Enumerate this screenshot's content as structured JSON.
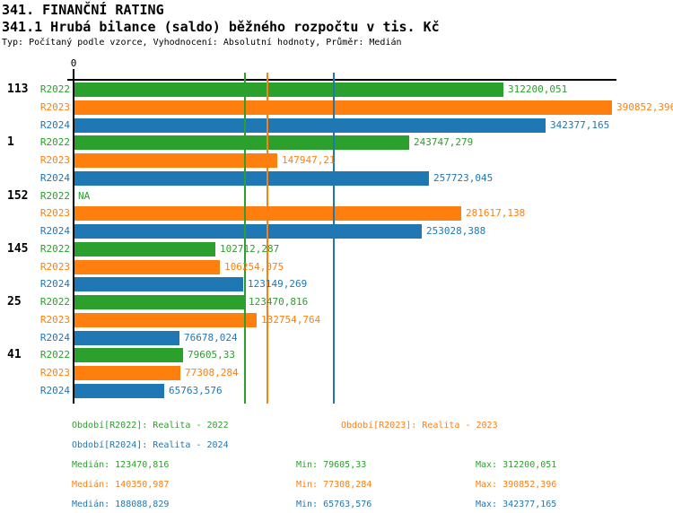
{
  "header": {
    "title": "341. FINANČNÍ RATING",
    "subtitle": "341.1 Hrubá bilance (saldo) běžného rozpočtu v tis. Kč",
    "meta": "Typ: Počítaný podle vzorce, Vyhodnocení: Absolutní hodnoty, Průměr: Medián"
  },
  "chart_data": {
    "type": "bar",
    "orientation": "horizontal",
    "title": "341.1 Hrubá bilance (saldo) běžného rozpočtu v tis. Kč",
    "unit": "tis. Kč",
    "axis": {
      "zero_label": "0",
      "min": 0,
      "max": 390852.396,
      "gridlines": false
    },
    "series": [
      {
        "id": "R2022",
        "label": "R2022",
        "color": "#2ca02c",
        "median": 123470.816,
        "min": 79605.33,
        "max": 312200.051
      },
      {
        "id": "R2023",
        "label": "R2023",
        "color": "#ff7f0e",
        "median": 140350.987,
        "min": 77308.284,
        "max": 390852.396
      },
      {
        "id": "R2024",
        "label": "R2024",
        "color": "#1f77b4",
        "median": 188088.829,
        "min": 65763.576,
        "max": 342377.165
      }
    ],
    "groups": [
      {
        "label": "113",
        "values": [
          312200.051,
          390852.396,
          342377.165
        ],
        "display": [
          "312200,051",
          "390852,396",
          "342377,165"
        ]
      },
      {
        "label": "1",
        "values": [
          243747.279,
          147947.21,
          257723.045
        ],
        "display": [
          "243747,279",
          "147947,21",
          "257723,045"
        ]
      },
      {
        "label": "152",
        "values": [
          null,
          281617.138,
          253028.388
        ],
        "display": [
          "NA",
          "281617,138",
          "253028,388"
        ]
      },
      {
        "label": "145",
        "values": [
          102712.287,
          106254.075,
          123149.269
        ],
        "display": [
          "102712,287",
          "106254,075",
          "123149,269"
        ]
      },
      {
        "label": "25",
        "values": [
          123470.816,
          132754.764,
          76678.024
        ],
        "display": [
          "123470,816",
          "132754,764",
          "76678,024"
        ]
      },
      {
        "label": "41",
        "values": [
          79605.33,
          77308.284,
          65763.576
        ],
        "display": [
          "79605,33",
          "77308,284",
          "65763,576"
        ]
      }
    ]
  },
  "legend": {
    "periods": [
      {
        "series": "R2022",
        "text": "Období[R2022]: Realita - 2022",
        "row": 0,
        "col": 0
      },
      {
        "series": "R2023",
        "text": "Období[R2023]: Realita - 2023",
        "row": 0,
        "col": 1
      },
      {
        "series": "R2024",
        "text": "Období[R2024]: Realita - 2024",
        "row": 1,
        "col": 0
      }
    ],
    "stats": [
      {
        "series": "R2022",
        "median": "Medián: 123470,816",
        "min": "Min: 79605,33",
        "max": "Max: 312200,051"
      },
      {
        "series": "R2023",
        "median": "Medián: 140350,987",
        "min": "Min: 77308,284",
        "max": "Max: 390852,396"
      },
      {
        "series": "R2024",
        "median": "Medián: 188088,829",
        "min": "Min: 65763,576",
        "max": "Max: 342377,165"
      }
    ]
  }
}
